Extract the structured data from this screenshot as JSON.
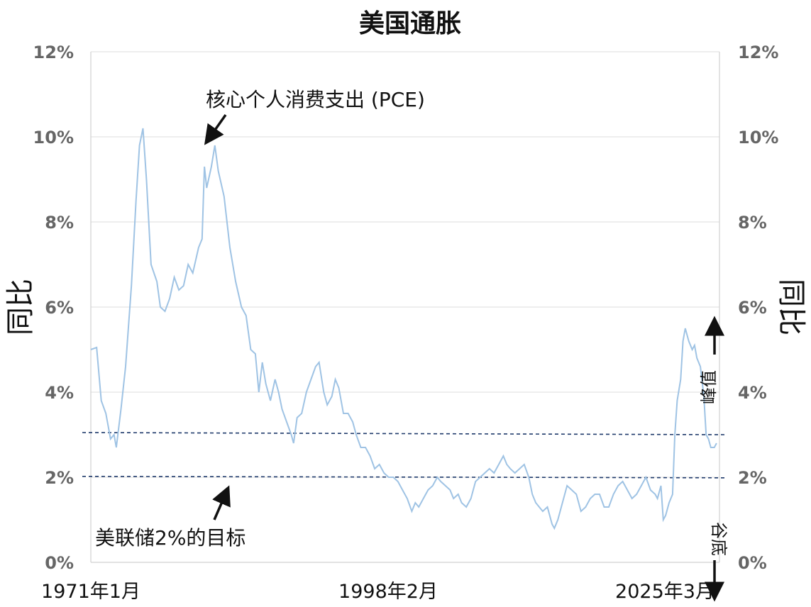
{
  "chart_data": {
    "type": "line",
    "title": "美国通胀",
    "ylabel_left": "同比",
    "ylabel_right": "同比",
    "ylim": [
      0,
      12
    ],
    "y_ticks": [
      "0%",
      "2%",
      "4%",
      "6%",
      "8%",
      "10%",
      "12%"
    ],
    "x_ticks": [
      "1971年1月",
      "1998年2月",
      "2025年3月"
    ],
    "grid": true,
    "reference_lines": [
      {
        "y": 3.05
      },
      {
        "y": 2.02
      }
    ],
    "annotations": {
      "pce": "核心个人消费支出 (PCE)",
      "fed_target": "美联储2%的目标",
      "peak": "峰值",
      "trough": "谷底"
    },
    "series": [
      {
        "color": "#9fc3e4",
        "points": [
          [
            1971.0,
            5.0
          ],
          [
            1971.5,
            5.05
          ],
          [
            1971.9,
            3.8
          ],
          [
            1972.3,
            3.5
          ],
          [
            1972.7,
            2.9
          ],
          [
            1973.0,
            3.0
          ],
          [
            1973.2,
            2.7
          ],
          [
            1973.6,
            3.6
          ],
          [
            1974.0,
            4.6
          ],
          [
            1974.5,
            6.5
          ],
          [
            1974.9,
            8.5
          ],
          [
            1975.2,
            9.8
          ],
          [
            1975.5,
            10.2
          ],
          [
            1975.8,
            9.0
          ],
          [
            1976.2,
            7.0
          ],
          [
            1976.7,
            6.6
          ],
          [
            1977.0,
            6.0
          ],
          [
            1977.4,
            5.9
          ],
          [
            1977.8,
            6.2
          ],
          [
            1978.2,
            6.7
          ],
          [
            1978.6,
            6.4
          ],
          [
            1979.0,
            6.5
          ],
          [
            1979.4,
            7.0
          ],
          [
            1979.8,
            6.8
          ],
          [
            1980.3,
            7.4
          ],
          [
            1980.6,
            7.6
          ],
          [
            1980.8,
            9.3
          ],
          [
            1981.0,
            8.8
          ],
          [
            1981.4,
            9.3
          ],
          [
            1981.7,
            9.8
          ],
          [
            1982.0,
            9.2
          ],
          [
            1982.5,
            8.6
          ],
          [
            1983.0,
            7.4
          ],
          [
            1983.5,
            6.6
          ],
          [
            1984.0,
            6.0
          ],
          [
            1984.4,
            5.8
          ],
          [
            1984.8,
            5.0
          ],
          [
            1985.2,
            4.9
          ],
          [
            1985.5,
            4.0
          ],
          [
            1985.8,
            4.7
          ],
          [
            1986.1,
            4.2
          ],
          [
            1986.5,
            3.8
          ],
          [
            1986.9,
            4.3
          ],
          [
            1987.2,
            4.0
          ],
          [
            1987.5,
            3.6
          ],
          [
            1987.9,
            3.3
          ],
          [
            1988.3,
            3.0
          ],
          [
            1988.5,
            2.8
          ],
          [
            1988.8,
            3.4
          ],
          [
            1989.2,
            3.5
          ],
          [
            1989.6,
            4.0
          ],
          [
            1990.0,
            4.3
          ],
          [
            1990.4,
            4.6
          ],
          [
            1990.7,
            4.7
          ],
          [
            1991.1,
            4.0
          ],
          [
            1991.4,
            3.7
          ],
          [
            1991.8,
            3.9
          ],
          [
            1992.1,
            4.3
          ],
          [
            1992.4,
            4.1
          ],
          [
            1992.8,
            3.5
          ],
          [
            1993.2,
            3.5
          ],
          [
            1993.6,
            3.3
          ],
          [
            1993.9,
            3.0
          ],
          [
            1994.3,
            2.7
          ],
          [
            1994.7,
            2.7
          ],
          [
            1995.1,
            2.5
          ],
          [
            1995.5,
            2.2
          ],
          [
            1995.9,
            2.3
          ],
          [
            1996.3,
            2.1
          ],
          [
            1996.7,
            2.0
          ],
          [
            1997.1,
            2.0
          ],
          [
            1997.5,
            1.9
          ],
          [
            1997.9,
            1.7
          ],
          [
            1998.3,
            1.5
          ],
          [
            1998.7,
            1.2
          ],
          [
            1999.0,
            1.4
          ],
          [
            1999.3,
            1.3
          ],
          [
            1999.7,
            1.5
          ],
          [
            2000.1,
            1.7
          ],
          [
            2000.5,
            1.8
          ],
          [
            2000.9,
            2.0
          ],
          [
            2001.2,
            1.9
          ],
          [
            2001.6,
            1.8
          ],
          [
            2002.0,
            1.7
          ],
          [
            2002.3,
            1.5
          ],
          [
            2002.7,
            1.6
          ],
          [
            2003.0,
            1.4
          ],
          [
            2003.4,
            1.3
          ],
          [
            2003.8,
            1.5
          ],
          [
            2004.2,
            1.9
          ],
          [
            2004.6,
            2.0
          ],
          [
            2005.0,
            2.1
          ],
          [
            2005.4,
            2.2
          ],
          [
            2005.8,
            2.1
          ],
          [
            2006.2,
            2.3
          ],
          [
            2006.6,
            2.5
          ],
          [
            2006.9,
            2.3
          ],
          [
            2007.2,
            2.2
          ],
          [
            2007.6,
            2.1
          ],
          [
            2008.0,
            2.2
          ],
          [
            2008.4,
            2.3
          ],
          [
            2008.8,
            2.0
          ],
          [
            2009.1,
            1.6
          ],
          [
            2009.4,
            1.4
          ],
          [
            2009.7,
            1.3
          ],
          [
            2010.0,
            1.2
          ],
          [
            2010.4,
            1.3
          ],
          [
            2010.8,
            0.9
          ],
          [
            2011.0,
            0.8
          ],
          [
            2011.3,
            1.0
          ],
          [
            2011.7,
            1.4
          ],
          [
            2012.1,
            1.8
          ],
          [
            2012.5,
            1.7
          ],
          [
            2012.9,
            1.6
          ],
          [
            2013.3,
            1.2
          ],
          [
            2013.7,
            1.3
          ],
          [
            2014.1,
            1.5
          ],
          [
            2014.5,
            1.6
          ],
          [
            2014.9,
            1.6
          ],
          [
            2015.3,
            1.3
          ],
          [
            2015.7,
            1.3
          ],
          [
            2016.1,
            1.6
          ],
          [
            2016.5,
            1.8
          ],
          [
            2016.9,
            1.9
          ],
          [
            2017.3,
            1.7
          ],
          [
            2017.7,
            1.5
          ],
          [
            2018.1,
            1.6
          ],
          [
            2018.5,
            1.8
          ],
          [
            2018.9,
            2.0
          ],
          [
            2019.3,
            1.7
          ],
          [
            2019.7,
            1.6
          ],
          [
            2019.9,
            1.5
          ],
          [
            2020.2,
            1.8
          ],
          [
            2020.4,
            1.0
          ],
          [
            2020.6,
            1.1
          ],
          [
            2020.9,
            1.4
          ],
          [
            2021.2,
            1.6
          ],
          [
            2021.4,
            3.0
          ],
          [
            2021.6,
            3.8
          ],
          [
            2021.9,
            4.3
          ],
          [
            2022.1,
            5.2
          ],
          [
            2022.3,
            5.5
          ],
          [
            2022.6,
            5.2
          ],
          [
            2022.9,
            5.0
          ],
          [
            2023.1,
            5.1
          ],
          [
            2023.3,
            4.8
          ],
          [
            2023.6,
            4.6
          ],
          [
            2023.9,
            3.9
          ],
          [
            2024.1,
            3.0
          ],
          [
            2024.3,
            2.9
          ],
          [
            2024.5,
            2.7
          ],
          [
            2024.8,
            2.7
          ],
          [
            2025.0,
            2.8
          ]
        ]
      }
    ]
  }
}
